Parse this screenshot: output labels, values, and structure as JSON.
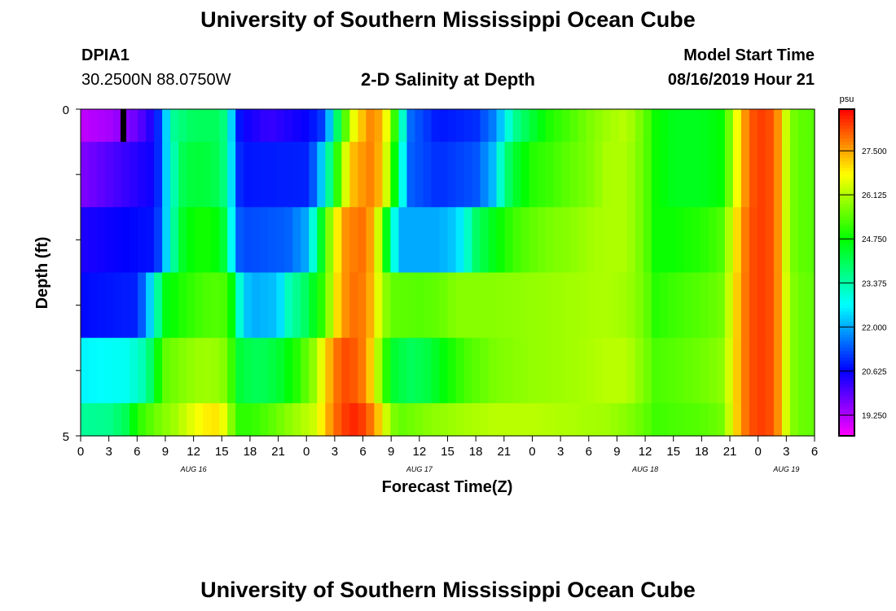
{
  "titles": {
    "top": "University of Southern Mississippi Ocean Cube",
    "bottom": "University of Southern Mississippi Ocean Cube"
  },
  "station": {
    "id": "DPIA1",
    "coords": "30.2500N 88.0750W"
  },
  "model": {
    "label": "Model Start Time",
    "value": "08/16/2019 Hour 21"
  },
  "chart_data": {
    "type": "heatmap",
    "title": "2-D Salinity at Depth",
    "xlabel": "Forecast Time(Z)",
    "ylabel": "Depth (ft)",
    "x_hours_range": [
      0,
      78
    ],
    "x_tick_labels": [
      "0",
      "3",
      "6",
      "9",
      "12",
      "15",
      "18",
      "21",
      "0",
      "3",
      "6",
      "9",
      "12",
      "15",
      "18",
      "21",
      "0",
      "3",
      "6",
      "9",
      "12",
      "15",
      "18",
      "21",
      "0",
      "3",
      "6"
    ],
    "date_labels": [
      {
        "text": "AUG 16",
        "hour": 12
      },
      {
        "text": "AUG 17",
        "hour": 36
      },
      {
        "text": "AUG 18",
        "hour": 60
      },
      {
        "text": "AUG 19",
        "hour": 75
      }
    ],
    "y_tick_labels": [
      {
        "text": "0",
        "depth": 0
      },
      {
        "text": "5",
        "depth": 5
      }
    ],
    "depth_range": [
      0,
      5
    ],
    "colorbar": {
      "unit": "psu",
      "min": 18.6,
      "max": 28.8,
      "labels": [
        "27.500",
        "26.125",
        "24.750",
        "23.375",
        "22.000",
        "20.625",
        "19.250"
      ]
    },
    "current_time_marker_hour": 4.5,
    "layer_bounds_ft": [
      0,
      0.5,
      1.5,
      2.5,
      3.5,
      4.5,
      5
    ],
    "layers": [
      {
        "name": "layer-0.0-0.5ft",
        "keyframes": [
          [
            0,
            19.1
          ],
          [
            3,
            19.3
          ],
          [
            6,
            19.8
          ],
          [
            8,
            20.6
          ],
          [
            9,
            22.2
          ],
          [
            10,
            23.6
          ],
          [
            12,
            24.0
          ],
          [
            15,
            24.0
          ],
          [
            16,
            22.4
          ],
          [
            17,
            20.6
          ],
          [
            20,
            20.2
          ],
          [
            24,
            20.6
          ],
          [
            26,
            21.2
          ],
          [
            27,
            23.4
          ],
          [
            28,
            25.2
          ],
          [
            29,
            26.6
          ],
          [
            30,
            27.3
          ],
          [
            31,
            27.8
          ],
          [
            32,
            27.3
          ],
          [
            33,
            26.0
          ],
          [
            34,
            23.6
          ],
          [
            35,
            21.5
          ],
          [
            38,
            20.8
          ],
          [
            42,
            21.0
          ],
          [
            44,
            21.7
          ],
          [
            45,
            22.5
          ],
          [
            46,
            23.5
          ],
          [
            48,
            24.3
          ],
          [
            50,
            25.0
          ],
          [
            52,
            25.3
          ],
          [
            54,
            25.7
          ],
          [
            56,
            26.0
          ],
          [
            58,
            26.2
          ],
          [
            60,
            25.5
          ],
          [
            61,
            24.8
          ],
          [
            63,
            24.5
          ],
          [
            66,
            24.5
          ],
          [
            68,
            24.7
          ],
          [
            69,
            25.7
          ],
          [
            70,
            27.0
          ],
          [
            71,
            28.0
          ],
          [
            72,
            28.3
          ],
          [
            73,
            28.3
          ],
          [
            74,
            27.8
          ],
          [
            75,
            26.3
          ],
          [
            76,
            25.5
          ],
          [
            78,
            25.4
          ]
        ]
      },
      {
        "name": "layer-0.5-1.5ft",
        "keyframes": [
          [
            0,
            19.6
          ],
          [
            8,
            20.6
          ],
          [
            9,
            22.2
          ],
          [
            10,
            23.4
          ],
          [
            11,
            24.2
          ],
          [
            13,
            24.3
          ],
          [
            15,
            24.0
          ],
          [
            16,
            22.5
          ],
          [
            17,
            20.8
          ],
          [
            24,
            20.9
          ],
          [
            25,
            21.5
          ],
          [
            26,
            22.8
          ],
          [
            27,
            24.6
          ],
          [
            28,
            26.3
          ],
          [
            29,
            27.3
          ],
          [
            30,
            27.6
          ],
          [
            31,
            27.8
          ],
          [
            32,
            27.2
          ],
          [
            33,
            25.6
          ],
          [
            34,
            23.2
          ],
          [
            35,
            21.4
          ],
          [
            38,
            21.0
          ],
          [
            42,
            21.3
          ],
          [
            44,
            22.2
          ],
          [
            45,
            23.6
          ],
          [
            46,
            24.3
          ],
          [
            48,
            25.0
          ],
          [
            50,
            25.2
          ],
          [
            52,
            25.5
          ],
          [
            54,
            25.7
          ],
          [
            56,
            26.1
          ],
          [
            58,
            26.1
          ],
          [
            60,
            25.5
          ],
          [
            61,
            24.8
          ],
          [
            63,
            24.5
          ],
          [
            66,
            24.5
          ],
          [
            68,
            24.7
          ],
          [
            69,
            25.7
          ],
          [
            70,
            27.0
          ],
          [
            71,
            28.0
          ],
          [
            72,
            28.3
          ],
          [
            73,
            28.3
          ],
          [
            74,
            27.8
          ],
          [
            75,
            26.3
          ],
          [
            76,
            25.5
          ],
          [
            78,
            25.4
          ]
        ]
      },
      {
        "name": "layer-1.5-2.5ft",
        "keyframes": [
          [
            0,
            20.4
          ],
          [
            8,
            20.8
          ],
          [
            9,
            22.2
          ],
          [
            10,
            23.6
          ],
          [
            11,
            24.6
          ],
          [
            13,
            24.9
          ],
          [
            15,
            24.6
          ],
          [
            16,
            22.8
          ],
          [
            17,
            21.2
          ],
          [
            22,
            21.4
          ],
          [
            24,
            22.0
          ],
          [
            25,
            23.4
          ],
          [
            26,
            25.2
          ],
          [
            27,
            26.6
          ],
          [
            28,
            27.6
          ],
          [
            29,
            27.8
          ],
          [
            30,
            27.9
          ],
          [
            31,
            27.4
          ],
          [
            32,
            25.8
          ],
          [
            33,
            23.3
          ],
          [
            34,
            22.0
          ],
          [
            38,
            22.0
          ],
          [
            40,
            22.3
          ],
          [
            41,
            23.0
          ],
          [
            42,
            23.9
          ],
          [
            44,
            24.6
          ],
          [
            46,
            25.2
          ],
          [
            48,
            25.5
          ],
          [
            50,
            25.7
          ],
          [
            52,
            25.8
          ],
          [
            54,
            26.0
          ],
          [
            56,
            26.1
          ],
          [
            58,
            26.1
          ],
          [
            60,
            25.5
          ],
          [
            61,
            24.8
          ],
          [
            63,
            24.8
          ],
          [
            66,
            25.0
          ],
          [
            68,
            25.3
          ],
          [
            69,
            26.2
          ],
          [
            70,
            27.3
          ],
          [
            71,
            28.1
          ],
          [
            72,
            28.3
          ],
          [
            73,
            28.3
          ],
          [
            74,
            27.8
          ],
          [
            75,
            26.3
          ],
          [
            76,
            25.5
          ],
          [
            78,
            25.4
          ]
        ]
      },
      {
        "name": "layer-2.5-3.5ft",
        "keyframes": [
          [
            0,
            20.7
          ],
          [
            6,
            20.9
          ],
          [
            7,
            21.8
          ],
          [
            8,
            23.2
          ],
          [
            9,
            24.6
          ],
          [
            11,
            25.0
          ],
          [
            13,
            25.3
          ],
          [
            15,
            25.4
          ],
          [
            16,
            24.8
          ],
          [
            17,
            22.8
          ],
          [
            18,
            22.0
          ],
          [
            21,
            22.2
          ],
          [
            22,
            23.2
          ],
          [
            24,
            24.0
          ],
          [
            26,
            25.3
          ],
          [
            27,
            26.8
          ],
          [
            28,
            27.6
          ],
          [
            29,
            27.9
          ],
          [
            30,
            27.8
          ],
          [
            31,
            27.3
          ],
          [
            32,
            26.1
          ],
          [
            33,
            25.5
          ],
          [
            36,
            25.4
          ],
          [
            38,
            25.5
          ],
          [
            40,
            25.8
          ],
          [
            44,
            25.8
          ],
          [
            48,
            25.9
          ],
          [
            52,
            26.0
          ],
          [
            56,
            26.1
          ],
          [
            58,
            26.0
          ],
          [
            60,
            25.6
          ],
          [
            61,
            25.0
          ],
          [
            63,
            25.2
          ],
          [
            66,
            25.4
          ],
          [
            68,
            25.6
          ],
          [
            69,
            26.4
          ],
          [
            70,
            27.4
          ],
          [
            71,
            28.1
          ],
          [
            72,
            28.3
          ],
          [
            73,
            28.3
          ],
          [
            74,
            27.8
          ],
          [
            75,
            26.4
          ],
          [
            76,
            25.6
          ],
          [
            78,
            25.5
          ]
        ]
      },
      {
        "name": "layer-3.5-4.5ft",
        "keyframes": [
          [
            0,
            22.6
          ],
          [
            5,
            22.8
          ],
          [
            7,
            23.4
          ],
          [
            8,
            24.6
          ],
          [
            9,
            25.5
          ],
          [
            11,
            25.8
          ],
          [
            13,
            26.0
          ],
          [
            15,
            25.9
          ],
          [
            16,
            25.2
          ],
          [
            17,
            24.2
          ],
          [
            19,
            24.0
          ],
          [
            21,
            24.3
          ],
          [
            23,
            25.0
          ],
          [
            25,
            26.0
          ],
          [
            26,
            27.0
          ],
          [
            27,
            27.8
          ],
          [
            28,
            28.2
          ],
          [
            29,
            28.1
          ],
          [
            30,
            27.8
          ],
          [
            31,
            27.0
          ],
          [
            32,
            25.6
          ],
          [
            33,
            24.4
          ],
          [
            35,
            24.0
          ],
          [
            37,
            24.2
          ],
          [
            39,
            24.8
          ],
          [
            41,
            25.3
          ],
          [
            44,
            25.7
          ],
          [
            48,
            25.9
          ],
          [
            52,
            26.0
          ],
          [
            56,
            26.2
          ],
          [
            58,
            26.2
          ],
          [
            60,
            25.7
          ],
          [
            61,
            25.3
          ],
          [
            63,
            25.4
          ],
          [
            66,
            25.6
          ],
          [
            68,
            25.8
          ],
          [
            69,
            26.5
          ],
          [
            70,
            27.4
          ],
          [
            71,
            28.1
          ],
          [
            72,
            28.3
          ],
          [
            73,
            28.3
          ],
          [
            74,
            27.8
          ],
          [
            75,
            26.4
          ],
          [
            76,
            25.6
          ],
          [
            78,
            25.5
          ]
        ]
      },
      {
        "name": "layer-4.5-5.0ft",
        "keyframes": [
          [
            0,
            23.5
          ],
          [
            3,
            23.6
          ],
          [
            5,
            24.1
          ],
          [
            6,
            25.0
          ],
          [
            8,
            25.6
          ],
          [
            10,
            26.0
          ],
          [
            12,
            26.6
          ],
          [
            14,
            27.0
          ],
          [
            15,
            26.8
          ],
          [
            16,
            25.8
          ],
          [
            17,
            25.0
          ],
          [
            19,
            25.2
          ],
          [
            21,
            25.6
          ],
          [
            23,
            26.0
          ],
          [
            25,
            26.4
          ],
          [
            26,
            27.2
          ],
          [
            27,
            27.9
          ],
          [
            28,
            28.3
          ],
          [
            29,
            28.5
          ],
          [
            30,
            28.3
          ],
          [
            31,
            27.8
          ],
          [
            32,
            26.9
          ],
          [
            33,
            25.8
          ],
          [
            34,
            25.5
          ],
          [
            37,
            25.8
          ],
          [
            40,
            26.0
          ],
          [
            44,
            26.2
          ],
          [
            48,
            26.2
          ],
          [
            52,
            26.1
          ],
          [
            56,
            26.0
          ],
          [
            58,
            25.8
          ],
          [
            60,
            25.5
          ],
          [
            61,
            25.2
          ],
          [
            63,
            25.3
          ],
          [
            66,
            25.4
          ],
          [
            68,
            25.6
          ],
          [
            69,
            26.4
          ],
          [
            70,
            27.4
          ],
          [
            71,
            28.1
          ],
          [
            72,
            28.3
          ],
          [
            73,
            28.3
          ],
          [
            74,
            27.8
          ],
          [
            75,
            26.4
          ],
          [
            76,
            25.6
          ],
          [
            78,
            25.5
          ]
        ]
      }
    ]
  }
}
